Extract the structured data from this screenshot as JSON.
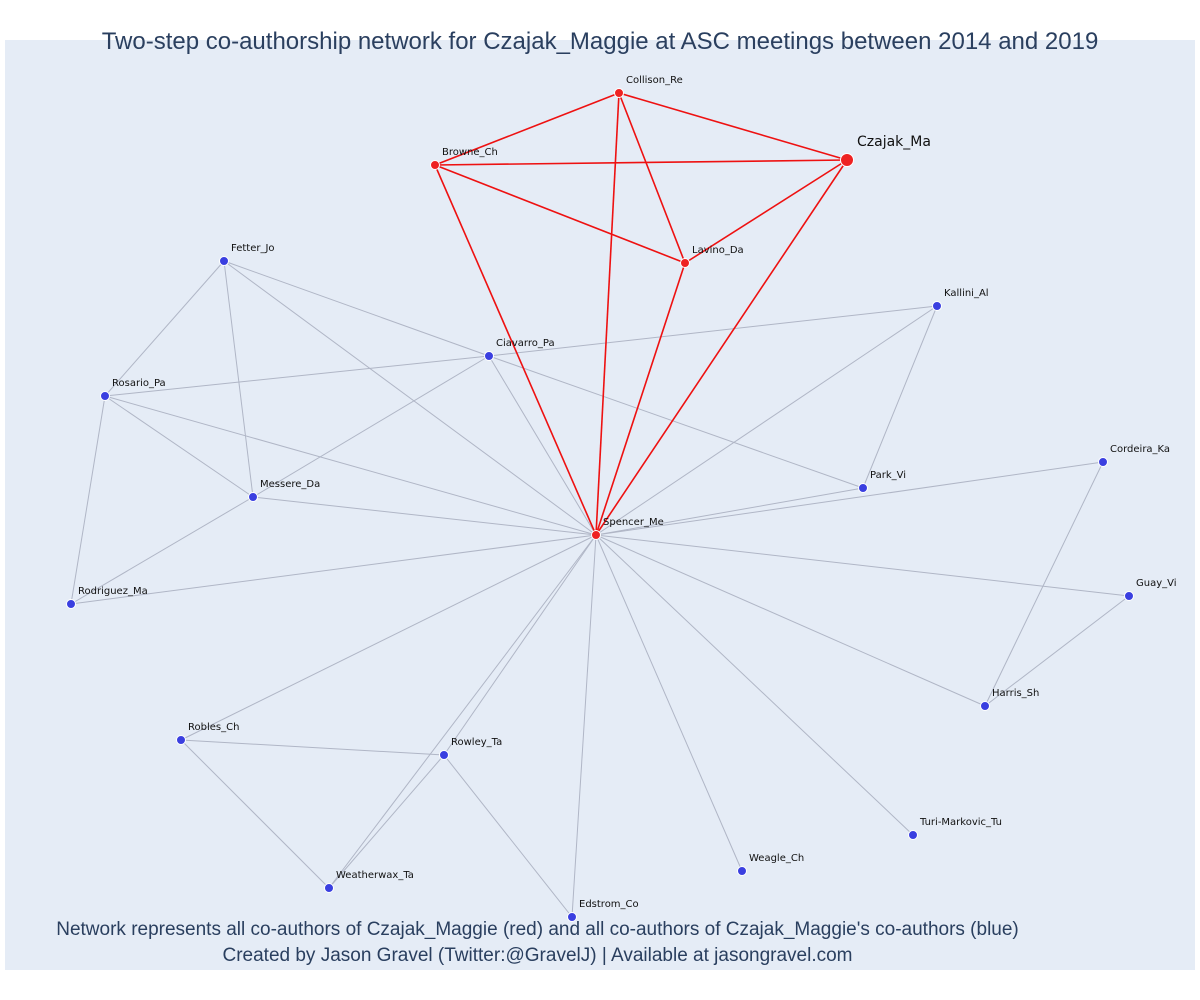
{
  "title": "Two-step co-authorship network for Czajak_Maggie at ASC meetings between 2014 and 2019",
  "footer": {
    "line1": "Network represents all co-authors of Czajak_Maggie (red) and all co-authors of Czajak_Maggie's co-authors (blue)",
    "line2": "Created by Jason Gravel (Twitter:@GravelJ) | Available at jasongravel.com"
  },
  "colors": {
    "direct": "#ee2222",
    "indirect": "#3a3fe0",
    "direct_edge": "#ee1111",
    "indirect_edge": "#b0b6c6"
  },
  "network": {
    "nodes": [
      {
        "id": "Czajak_Ma",
        "group": "ego"
      },
      {
        "id": "Collison_Re",
        "group": "direct"
      },
      {
        "id": "Browne_Ch",
        "group": "direct"
      },
      {
        "id": "Lavino_Da",
        "group": "direct"
      },
      {
        "id": "Spencer_Me",
        "group": "direct"
      },
      {
        "id": "Fetter_Jo",
        "group": "indirect"
      },
      {
        "id": "Kallini_Al",
        "group": "indirect"
      },
      {
        "id": "Ciavarro_Pa",
        "group": "indirect"
      },
      {
        "id": "Rosario_Pa",
        "group": "indirect"
      },
      {
        "id": "Messere_Da",
        "group": "indirect"
      },
      {
        "id": "Park_Vi",
        "group": "indirect"
      },
      {
        "id": "Cordeira_Ka",
        "group": "indirect"
      },
      {
        "id": "Rodriguez_Ma",
        "group": "indirect"
      },
      {
        "id": "Guay_Vi",
        "group": "indirect"
      },
      {
        "id": "Harris_Sh",
        "group": "indirect"
      },
      {
        "id": "Robles_Ch",
        "group": "indirect"
      },
      {
        "id": "Rowley_Ta",
        "group": "indirect"
      },
      {
        "id": "Turi-Markovic_Tu",
        "group": "indirect"
      },
      {
        "id": "Weagle_Ch",
        "group": "indirect"
      },
      {
        "id": "Weatherwax_Ta",
        "group": "indirect"
      },
      {
        "id": "Edstrom_Co",
        "group": "indirect"
      }
    ],
    "edges": [
      [
        "Czajak_Ma",
        "Collison_Re"
      ],
      [
        "Czajak_Ma",
        "Browne_Ch"
      ],
      [
        "Czajak_Ma",
        "Lavino_Da"
      ],
      [
        "Czajak_Ma",
        "Spencer_Me"
      ],
      [
        "Collison_Re",
        "Browne_Ch"
      ],
      [
        "Collison_Re",
        "Lavino_Da"
      ],
      [
        "Collison_Re",
        "Spencer_Me"
      ],
      [
        "Browne_Ch",
        "Lavino_Da"
      ],
      [
        "Browne_Ch",
        "Spencer_Me"
      ],
      [
        "Lavino_Da",
        "Spencer_Me"
      ],
      [
        "Spencer_Me",
        "Fetter_Jo"
      ],
      [
        "Spencer_Me",
        "Ciavarro_Pa"
      ],
      [
        "Spencer_Me",
        "Rosario_Pa"
      ],
      [
        "Spencer_Me",
        "Messere_Da"
      ],
      [
        "Spencer_Me",
        "Kallini_Al"
      ],
      [
        "Spencer_Me",
        "Park_Vi"
      ],
      [
        "Spencer_Me",
        "Cordeira_Ka"
      ],
      [
        "Spencer_Me",
        "Rodriguez_Ma"
      ],
      [
        "Spencer_Me",
        "Guay_Vi"
      ],
      [
        "Spencer_Me",
        "Harris_Sh"
      ],
      [
        "Spencer_Me",
        "Robles_Ch"
      ],
      [
        "Spencer_Me",
        "Rowley_Ta"
      ],
      [
        "Spencer_Me",
        "Turi-Markovic_Tu"
      ],
      [
        "Spencer_Me",
        "Weagle_Ch"
      ],
      [
        "Spencer_Me",
        "Weatherwax_Ta"
      ],
      [
        "Spencer_Me",
        "Edstrom_Co"
      ],
      [
        "Fetter_Jo",
        "Rosario_Pa"
      ],
      [
        "Fetter_Jo",
        "Messere_Da"
      ],
      [
        "Fetter_Jo",
        "Ciavarro_Pa"
      ],
      [
        "Ciavarro_Pa",
        "Rosario_Pa"
      ],
      [
        "Ciavarro_Pa",
        "Messere_Da"
      ],
      [
        "Ciavarro_Pa",
        "Park_Vi"
      ],
      [
        "Ciavarro_Pa",
        "Kallini_Al"
      ],
      [
        "Rosario_Pa",
        "Messere_Da"
      ],
      [
        "Rosario_Pa",
        "Rodriguez_Ma"
      ],
      [
        "Messere_Da",
        "Rodriguez_Ma"
      ],
      [
        "Kallini_Al",
        "Park_Vi"
      ],
      [
        "Cordeira_Ka",
        "Harris_Sh"
      ],
      [
        "Guay_Vi",
        "Harris_Sh"
      ],
      [
        "Robles_Ch",
        "Rowley_Ta"
      ],
      [
        "Robles_Ch",
        "Weatherwax_Ta"
      ],
      [
        "Rowley_Ta",
        "Weatherwax_Ta"
      ],
      [
        "Rowley_Ta",
        "Edstrom_Co"
      ]
    ]
  }
}
